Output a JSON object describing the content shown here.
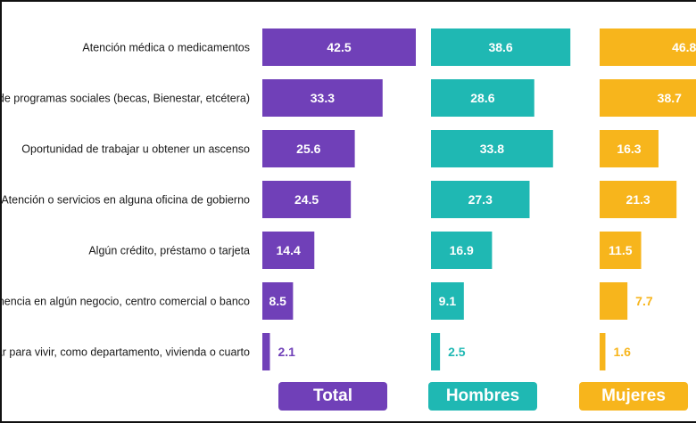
{
  "chart_data": {
    "type": "bar",
    "orientation": "horizontal",
    "categories": [
      "Atención médica o medicamentos",
      "de programas sociales (becas, Bienestar, etcétera)",
      "Oportunidad de trabajar u obtener un ascenso",
      "Atención o servicios en alguna oficina de gobierno",
      "Algún crédito, préstamo o tarjeta",
      "anencia en algún negocio, centro comercial o banco",
      "ar para vivir, como departamento, vivienda o cuarto"
    ],
    "series": [
      {
        "name": "Total",
        "color": "#7040b8",
        "values": [
          42.5,
          33.3,
          25.6,
          24.5,
          14.4,
          8.5,
          2.1
        ]
      },
      {
        "name": "Hombres",
        "color": "#1fb8b3",
        "values": [
          38.6,
          28.6,
          33.8,
          27.3,
          16.9,
          9.1,
          2.5
        ]
      },
      {
        "name": "Mujeres",
        "color": "#f7b51c",
        "values": [
          46.8,
          38.7,
          16.3,
          21.3,
          11.5,
          7.7,
          1.6
        ]
      }
    ],
    "value_labels": [
      [
        "42.5",
        "33.3",
        "25.6",
        "24.5",
        "14.4",
        "8.5",
        "2.1"
      ],
      [
        "38.6",
        "28.6",
        "33.8",
        "27.3",
        "16.9",
        "9.1",
        "2.5"
      ],
      [
        "46.8",
        "38.7",
        "16.3",
        "21.3",
        "11.5",
        "7.7",
        "1.6"
      ]
    ],
    "title": "",
    "xlabel": "",
    "ylabel": "",
    "grid": false,
    "legend": "bottom"
  }
}
